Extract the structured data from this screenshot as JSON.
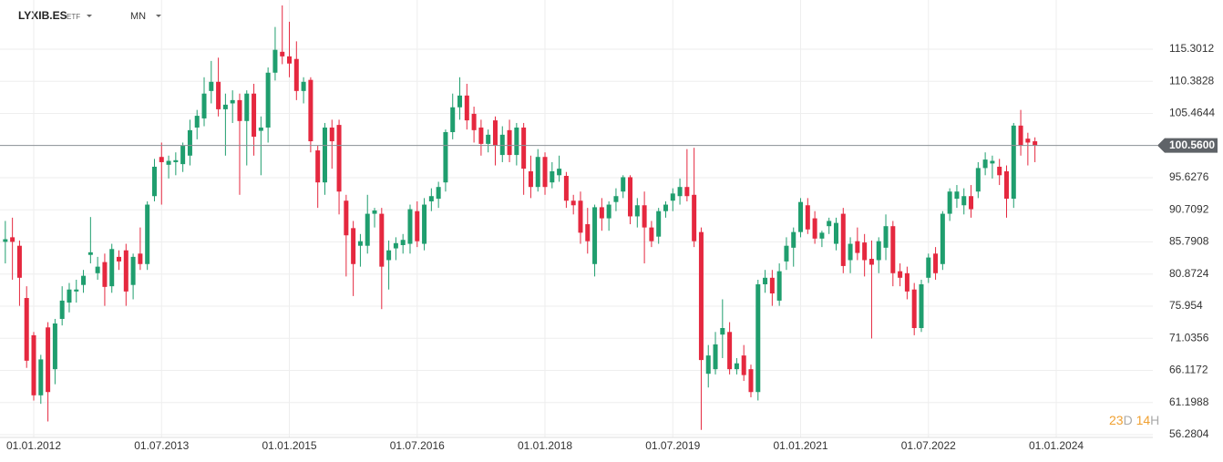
{
  "header": {
    "symbol": "LYXIB.ES",
    "symbol_type": "ETF",
    "interval": "MN"
  },
  "countdown": [
    {
      "value": "23",
      "unit": "D"
    },
    {
      "value": "14",
      "unit": "H"
    }
  ],
  "chart_data": {
    "type": "candlestick",
    "up_color": "#1f9e6e",
    "down_color": "#e5283f",
    "x": [
      -4,
      -3,
      -2,
      -1,
      0,
      1,
      2,
      3,
      4,
      5,
      6,
      7,
      8,
      9,
      10,
      11,
      12,
      13,
      14,
      15,
      16,
      17,
      18,
      19,
      20,
      21,
      22,
      23,
      24,
      25,
      26,
      27,
      28,
      29,
      30,
      31,
      32,
      33,
      34,
      35,
      36,
      37,
      38,
      39,
      40,
      41,
      42,
      43,
      44,
      45,
      46,
      47,
      48,
      49,
      50,
      51,
      52,
      53,
      54,
      55,
      56,
      57,
      58,
      59,
      60,
      61,
      62,
      63,
      64,
      65,
      66,
      67,
      68,
      69,
      70,
      71,
      72,
      73,
      74,
      75,
      76,
      77,
      78,
      79,
      80,
      81,
      82,
      83,
      84,
      85,
      86,
      87,
      88,
      89,
      90,
      91,
      92,
      93,
      94,
      95,
      96,
      97,
      98,
      99,
      100,
      101,
      102,
      103,
      104,
      105,
      106,
      107,
      108,
      109,
      110,
      111,
      112,
      113,
      114,
      115,
      116,
      117,
      118,
      119,
      120,
      121,
      122,
      123,
      124,
      125,
      126,
      127,
      128,
      129,
      130,
      131,
      132,
      133,
      134,
      135,
      136,
      137,
      138,
      139,
      140,
      141
    ],
    "open": [
      85.8,
      86.5,
      85.2,
      77.2,
      71.5,
      62.3,
      72.7,
      66.3,
      74,
      76.5,
      78.2,
      79.2,
      83.8,
      81,
      82.7,
      79,
      83.5,
      84.5,
      79.2,
      84,
      82.4,
      92.8,
      98.8,
      97.6,
      98,
      97.7,
      99,
      103.3,
      104.7,
      108.9,
      110.3,
      106.1,
      107,
      107.5,
      104.3,
      108.5,
      102.8,
      103.3,
      111.7,
      114.9,
      114.2,
      113.8,
      108.9,
      110.6,
      99.8,
      94.9,
      103.3,
      103.7,
      92.1,
      87.9,
      85.2,
      85.2,
      90.1,
      90.1,
      83,
      84.8,
      85.3,
      85.5,
      90.5,
      85.5,
      92,
      92.4,
      94.9,
      102.6,
      106.4,
      108.2,
      105.4,
      103.3,
      100.8,
      104.4,
      99.1,
      102.9,
      99.1,
      103.3,
      96.6,
      94.2,
      98.8,
      94.9,
      96,
      95.9,
      92.1,
      92.1,
      88.5,
      82.4,
      91.1,
      89.4,
      91.9,
      93.5,
      95.7,
      89.7,
      91.4,
      88,
      86.6,
      90.5,
      92.1,
      92.8,
      94.2,
      93,
      87.3,
      65.6,
      66.3,
      71.6,
      72,
      66.3,
      68.4,
      66.3,
      62.8,
      79.3,
      80.3,
      76.8,
      82.8,
      84.9,
      87.3,
      91.4,
      89.4,
      86.3,
      88.2,
      85.5,
      90.1,
      83,
      85.9,
      85.7,
      83.2,
      83,
      84.9,
      88.2,
      81.3,
      81,
      78.5,
      72.6,
      80.3,
      84,
      82.4,
      90.1,
      92.4,
      91.4,
      92.8,
      93.5,
      97.1,
      97.8,
      97.3,
      96.6,
      92.4,
      103.6,
      101.6,
      101.2
    ],
    "high": [
      89,
      89.5,
      86,
      79,
      72,
      68.5,
      73.5,
      74,
      79,
      79.5,
      80,
      81.5,
      89.6,
      83.5,
      84,
      85.5,
      84.5,
      85.5,
      84,
      88,
      92,
      98.5,
      101,
      99,
      99.5,
      101,
      104.5,
      106,
      111,
      113.5,
      114,
      108.5,
      109,
      108.5,
      109,
      110,
      105,
      112.5,
      118.7,
      122,
      119.5,
      116.5,
      111,
      111,
      100.5,
      104,
      104.5,
      104.5,
      93,
      89,
      87,
      93,
      91,
      91,
      86,
      86.5,
      87,
      91.5,
      92,
      92.5,
      94,
      95,
      103,
      108.5,
      111,
      110,
      106.5,
      104.5,
      103,
      105,
      103.5,
      104.5,
      104,
      104,
      99,
      100,
      99.5,
      98,
      99,
      96.5,
      93,
      93.5,
      91,
      91.5,
      92.5,
      92,
      94,
      96,
      96,
      92.5,
      93.5,
      89,
      91,
      92,
      94,
      95.5,
      100,
      100.2,
      88,
      70,
      72,
      77,
      73.5,
      68,
      70,
      67,
      80,
      81.5,
      81.5,
      82.5,
      86.5,
      88,
      92.5,
      92.5,
      90.5,
      87.5,
      89.5,
      89.5,
      91,
      86.5,
      88,
      87,
      86,
      86.5,
      90,
      89,
      82.5,
      82,
      79.5,
      80,
      84,
      85,
      90.5,
      94,
      94.5,
      94,
      94.5,
      98,
      99.5,
      99,
      98.5,
      97.5,
      104,
      106,
      102.5,
      101.8
    ],
    "low": [
      82.5,
      80,
      76,
      66.5,
      61.5,
      61,
      58.3,
      64,
      73,
      75,
      76.5,
      78,
      82.5,
      80,
      76,
      78,
      81.5,
      76,
      77,
      81.5,
      81.5,
      92,
      91.5,
      95.5,
      96,
      96.5,
      97.5,
      101.5,
      103.5,
      107,
      105,
      99,
      104,
      93,
      97.5,
      99,
      96,
      101,
      110.5,
      113,
      111,
      107.5,
      107,
      99.5,
      91,
      93,
      97,
      90,
      80.5,
      77.5,
      82,
      84,
      88,
      75.5,
      78.5,
      83,
      84,
      84,
      85,
      84.5,
      90.5,
      91,
      93.5,
      101.5,
      104.5,
      103,
      101,
      99,
      99.5,
      97.5,
      98,
      98,
      97.5,
      93,
      92.5,
      93.5,
      93,
      94,
      95,
      91,
      90,
      85.5,
      84,
      80.5,
      87.5,
      87.5,
      90.5,
      92.5,
      88.5,
      88,
      82.5,
      85,
      85.5,
      89.5,
      90.5,
      91.5,
      92,
      85,
      57,
      63.5,
      65.5,
      68,
      65.5,
      65.5,
      64.5,
      62,
      61.5,
      78,
      76,
      76,
      81.5,
      82,
      86.5,
      87,
      85.5,
      85,
      87,
      84.5,
      81,
      81,
      83,
      80.5,
      71,
      81,
      83,
      79,
      79,
      77,
      71.5,
      72,
      79.5,
      80,
      81.5,
      89,
      91,
      90,
      89.5,
      92.5,
      96,
      95.5,
      94.5,
      89.5,
      91,
      99,
      97.5,
      98
    ],
    "close": [
      86.2,
      85.8,
      80.3,
      67.6,
      62.3,
      67.8,
      62.8,
      73.3,
      76.8,
      78.5,
      78.5,
      80.6,
      84.2,
      82,
      78.9,
      84.7,
      82.8,
      78.2,
      83.5,
      82.4,
      91.5,
      97.3,
      98,
      98.2,
      98.3,
      100.5,
      102.9,
      105.1,
      108.5,
      110.3,
      106.1,
      106.8,
      107.5,
      104.3,
      108.5,
      101.9,
      103.3,
      111.7,
      115.2,
      114.2,
      113.1,
      108.9,
      110.3,
      101.2,
      94.9,
      103.3,
      101.2,
      93.5,
      86.8,
      82.4,
      85.9,
      90.1,
      90.6,
      82,
      84.5,
      85.6,
      86.1,
      90.8,
      85.9,
      91.5,
      92.8,
      94.2,
      102.6,
      106.4,
      108.2,
      104.4,
      102.9,
      100.8,
      102.2,
      100.5,
      102.2,
      99.1,
      103.3,
      97,
      94.2,
      98.8,
      94.2,
      96.6,
      97,
      92.1,
      91.4,
      87.2,
      85.9,
      91.1,
      89.4,
      91.5,
      92.8,
      95.7,
      89.7,
      91.4,
      88,
      85.9,
      90.5,
      91.5,
      93.2,
      94.2,
      92.8,
      85.9,
      67.7,
      68.4,
      70.1,
      72.6,
      66.3,
      67.2,
      65.4,
      62.8,
      79.3,
      80.3,
      77.9,
      81.3,
      85.2,
      87.3,
      91.9,
      87.7,
      86.3,
      87.2,
      89,
      88.7,
      82.1,
      85.5,
      84.1,
      83,
      82.3,
      85.9,
      88.2,
      81,
      80.3,
      78.2,
      72.6,
      79.3,
      83.4,
      81,
      90.1,
      93.5,
      93.5,
      92.8,
      90.8,
      97.1,
      98.4,
      98.2,
      96,
      92.4,
      103.6,
      100.5,
      101,
      100.56
    ],
    "xlim": [
      -4.75,
      157.6
    ],
    "xticks": [
      {
        "value": 0,
        "label": "01.01.2012"
      },
      {
        "value": 18,
        "label": "01.07.2013"
      },
      {
        "value": 36,
        "label": "01.01.2015"
      },
      {
        "value": 54,
        "label": "01.07.2016"
      },
      {
        "value": 72,
        "label": "01.01.2018"
      },
      {
        "value": 90,
        "label": "01.07.2019"
      },
      {
        "value": 108,
        "label": "01.01.2021"
      },
      {
        "value": 126,
        "label": "01.07.2022"
      },
      {
        "value": 144,
        "label": "01.01.2024"
      }
    ],
    "ylim": [
      55.16,
      122.83
    ],
    "yticks": [
      115.3012,
      110.3828,
      105.4644,
      95.6276,
      90.7092,
      85.7908,
      80.8724,
      75.954,
      71.0356,
      66.1172,
      61.1988,
      56.2804
    ],
    "last_price": {
      "value": 100.56,
      "label": "100.5600"
    },
    "grid": true
  }
}
